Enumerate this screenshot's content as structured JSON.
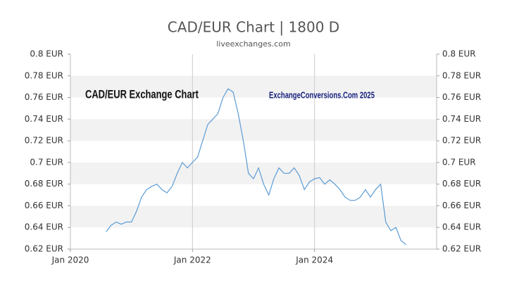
{
  "chart_data": {
    "type": "line",
    "title": "CAD/EUR Chart | 1800 D",
    "subtitle": "liveexchanges.com",
    "annotations": [
      "CAD/EUR Exchange Chart",
      "ExchangeConversions.Com 2025"
    ],
    "x": [
      "2020-08",
      "2020-09",
      "2020-10",
      "2020-11",
      "2020-12",
      "2021-01",
      "2021-02",
      "2021-03",
      "2021-04",
      "2021-05",
      "2021-06",
      "2021-07",
      "2021-08",
      "2021-09",
      "2021-10",
      "2021-11",
      "2021-12",
      "2022-01",
      "2022-02",
      "2022-03",
      "2022-04",
      "2022-05",
      "2022-06",
      "2022-07",
      "2022-08",
      "2022-09",
      "2022-10",
      "2022-11",
      "2022-12",
      "2023-01",
      "2023-02",
      "2023-03",
      "2023-04",
      "2023-05",
      "2023-06",
      "2023-07",
      "2023-08",
      "2023-09",
      "2023-10",
      "2023-11",
      "2023-12",
      "2024-01",
      "2024-02",
      "2024-03",
      "2024-04",
      "2024-05",
      "2024-06",
      "2024-07",
      "2024-08",
      "2024-09",
      "2024-10",
      "2024-11",
      "2024-12",
      "2025-01",
      "2025-02",
      "2025-03",
      "2025-04",
      "2025-05",
      "2025-06",
      "2025-07"
    ],
    "series": [
      {
        "name": "CAD/EUR",
        "color": "#5b9bd5",
        "values": [
          0.636,
          0.642,
          0.645,
          0.643,
          0.645,
          0.645,
          0.655,
          0.668,
          0.675,
          0.678,
          0.68,
          0.675,
          0.672,
          0.678,
          0.69,
          0.7,
          0.695,
          0.7,
          0.705,
          0.72,
          0.735,
          0.74,
          0.745,
          0.76,
          0.768,
          0.765,
          0.745,
          0.72,
          0.69,
          0.685,
          0.695,
          0.68,
          0.67,
          0.685,
          0.695,
          0.69,
          0.69,
          0.695,
          0.688,
          0.675,
          0.682,
          0.685,
          0.686,
          0.68,
          0.684,
          0.68,
          0.675,
          0.668,
          0.665,
          0.665,
          0.668,
          0.675,
          0.668,
          0.675,
          0.68,
          0.645,
          0.637,
          0.64,
          0.628,
          0.624
        ]
      }
    ],
    "xlim": [
      "2020-01",
      "2026-01"
    ],
    "xticks": [
      {
        "value": "2020-01",
        "label": "Jan 2020"
      },
      {
        "value": "2022-01",
        "label": "Jan 2022"
      },
      {
        "value": "2024-01",
        "label": "Jan 2024"
      }
    ],
    "ylim": [
      0.62,
      0.8
    ],
    "yticks": [
      {
        "value": 0.62,
        "label": "0.62 EUR"
      },
      {
        "value": 0.64,
        "label": "0.64 EUR"
      },
      {
        "value": 0.66,
        "label": "0.66 EUR"
      },
      {
        "value": 0.68,
        "label": "0.68 EUR"
      },
      {
        "value": 0.7,
        "label": "0.7 EUR"
      },
      {
        "value": 0.72,
        "label": "0.72 EUR"
      },
      {
        "value": 0.74,
        "label": "0.74 EUR"
      },
      {
        "value": 0.76,
        "label": "0.76 EUR"
      },
      {
        "value": 0.78,
        "label": "0.78 EUR"
      },
      {
        "value": 0.8,
        "label": "0.8 EUR"
      }
    ],
    "grid": true
  }
}
